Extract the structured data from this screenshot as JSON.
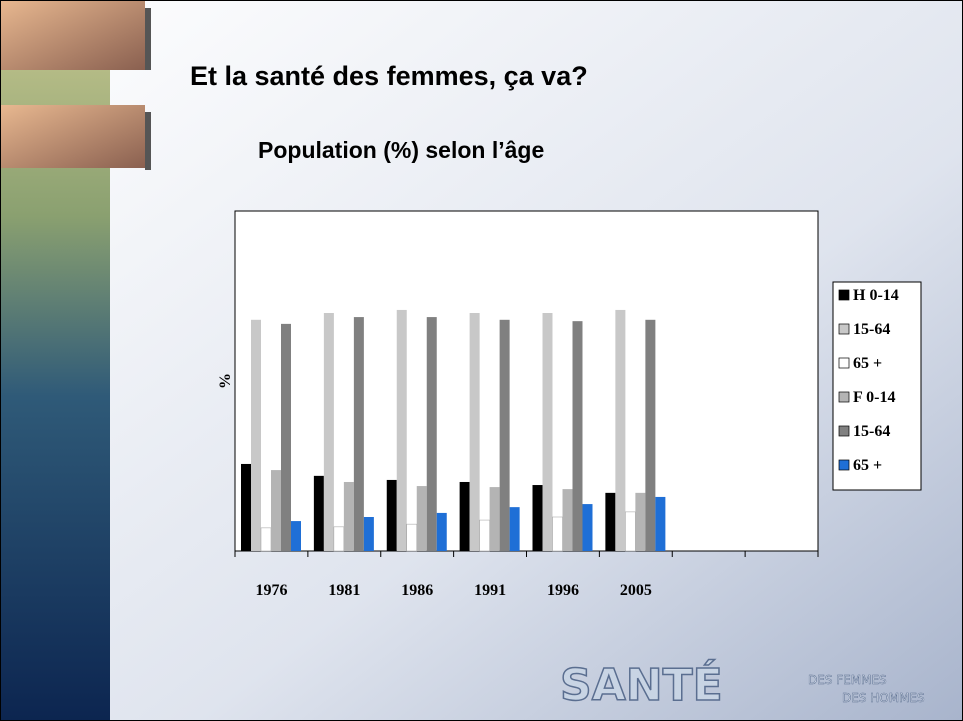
{
  "chart_data": {
    "type": "bar",
    "title": "Et la santé des femmes, ça va?",
    "subtitle": "Population  (%) selon l’âge",
    "y_label": "%",
    "categories": [
      "1976",
      "1981",
      "1986",
      "1991",
      "1996",
      "2005",
      null,
      null
    ],
    "series": [
      {
        "name": "H 0-14",
        "color": "#000000",
        "values": [
          25.6,
          22.1,
          20.9,
          20.3,
          19.4,
          17.1,
          null,
          null
        ]
      },
      {
        "name": "15-64",
        "color": "#c8c8c8",
        "values": [
          68,
          70,
          70.9,
          70,
          70,
          70.9,
          null,
          null
        ]
      },
      {
        "name": "65 +",
        "color": "#ffffff",
        "values": [
          6.8,
          7.1,
          7.9,
          9.1,
          10,
          11.5,
          null,
          null
        ]
      },
      {
        "name": "F 0-14",
        "color": "#b4b4b4",
        "values": [
          23.8,
          20.3,
          19.1,
          18.8,
          18.2,
          17.1,
          null,
          null
        ]
      },
      {
        "name": "15-64",
        "color": "#808080",
        "values": [
          66.8,
          68.8,
          68.8,
          68,
          67.6,
          68,
          null,
          null
        ]
      },
      {
        "name": "65 +",
        "color": "#1f6fd6",
        "values": [
          8.8,
          10,
          11.2,
          12.9,
          13.8,
          15.9,
          null,
          null
        ]
      }
    ],
    "ylim": [
      0,
      100
    ],
    "legend": "right"
  },
  "logo": {
    "main": "SANTÉ",
    "line1": "DES FEMMES",
    "line2": "DES HOMMES"
  }
}
